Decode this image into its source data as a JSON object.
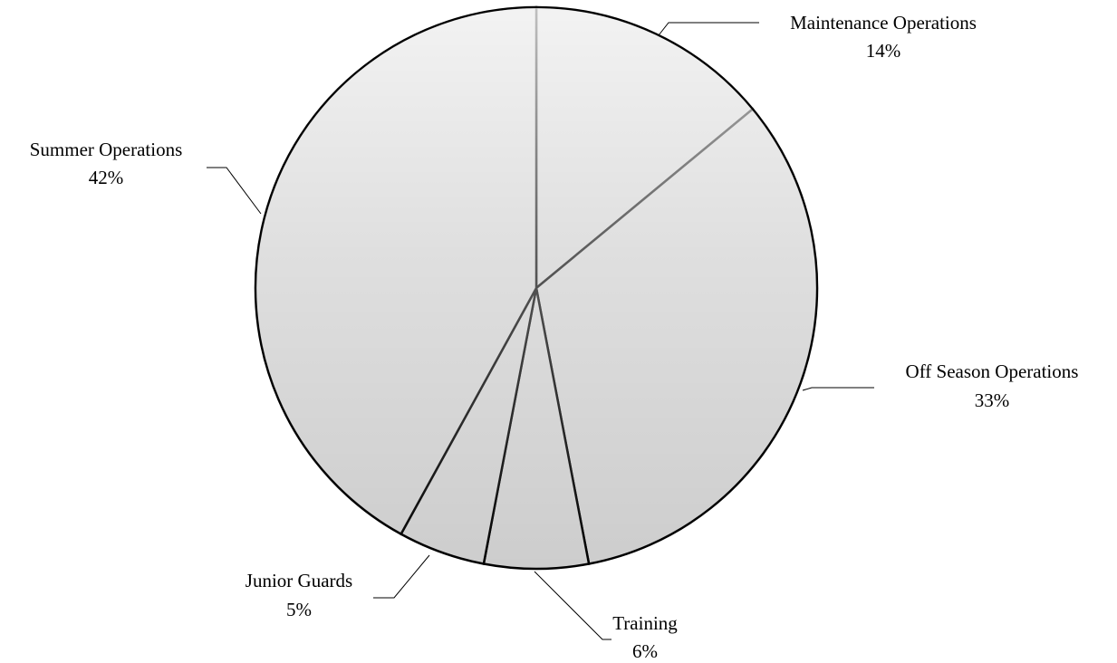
{
  "chart_data": {
    "type": "pie",
    "categories": [
      "Maintenance Operations",
      "Off Season Operations",
      "Training",
      "Junior Guards",
      "Summer Operations"
    ],
    "values": [
      14,
      33,
      6,
      5,
      42
    ],
    "value_labels": [
      "14%",
      "33%",
      "6%",
      "5%",
      "42%"
    ],
    "color": "#cdcdcd"
  }
}
